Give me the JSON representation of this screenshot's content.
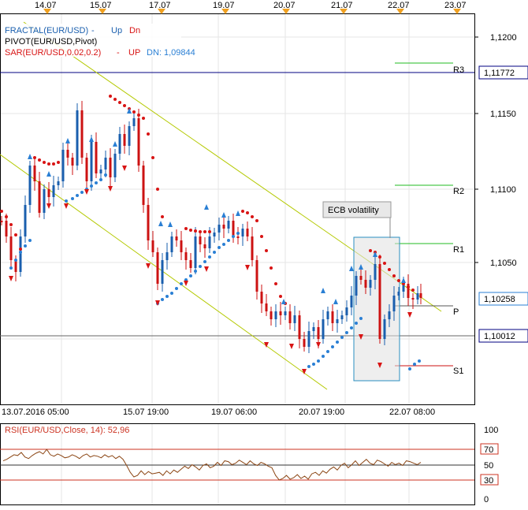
{
  "colors": {
    "frame": "#000000",
    "grid": "#e6e6e6",
    "up_candle": "#1a5fae",
    "down_candle": "#cc1212",
    "sar_up": "#2a7fd4",
    "sar_dn": "#d81414",
    "fractal_up": "#2a7fd4",
    "fractal_dn": "#d81414",
    "channel": "#b4c900",
    "pivot_green": "#22bb22",
    "pivot_s1": "#cc1111",
    "level_navy": "#000080",
    "rsi_line": "#8b4513",
    "rsi_levels": "#cc3322",
    "date_flag": "#f0a020",
    "highlight_box": "#2a8fc0"
  },
  "date_flags": [
    "14.07",
    "15.07",
    "17.07",
    "19.07",
    "20.07",
    "21.07",
    "22.07",
    "23.07"
  ],
  "legend": {
    "fractal": "FRACTAL(EUR/USD)",
    "fractal_up": "Up",
    "fractal_dn": "Dn",
    "fractal_sep": "-",
    "pivot": "PIVOT(EUR/USD,Pivot)",
    "sar": "SAR(EUR/USD,0.02,0.2)",
    "sar_sep": "-",
    "sar_up": "UP",
    "sar_dn": "DN: 1,09844"
  },
  "price_axis": {
    "ticks": [
      "1,1200",
      "1,1150",
      "1,1100",
      "1,1050"
    ],
    "highlight_1": "1,11772",
    "highlight_2": "1,10258",
    "highlight_3": "1,10012"
  },
  "pivot_labels": {
    "r3": "R3",
    "r2": "R2",
    "r1": "R1",
    "p": "P",
    "s1": "S1"
  },
  "annotation": "ECB volatility",
  "time_axis": [
    "13.07.2016 05:00",
    "15.07 19:00",
    "19.07 06:00",
    "20.07 19:00",
    "22.07 08:00"
  ],
  "rsi": {
    "title": "RSI(EUR/USD,Close, 14): 52,96",
    "ticks": [
      "100",
      "70",
      "50",
      "30",
      "0"
    ],
    "values": [
      55,
      57,
      60,
      63,
      62,
      66,
      60,
      58,
      62,
      65,
      67,
      64,
      70,
      63,
      61,
      64,
      62,
      59,
      60,
      63,
      61,
      58,
      62,
      64,
      60,
      62,
      61,
      59,
      63,
      60,
      62,
      58,
      61,
      57,
      49,
      40,
      34,
      36,
      42,
      37,
      41,
      38,
      39,
      40,
      36,
      42,
      38,
      43,
      40,
      44,
      48,
      45,
      50,
      47,
      43,
      49,
      51,
      46,
      48,
      53,
      49,
      55,
      54,
      50,
      52,
      56,
      53,
      50,
      55,
      51,
      49,
      53,
      51,
      48,
      46,
      36,
      30,
      32,
      36,
      31,
      33,
      37,
      32,
      35,
      31,
      38,
      40,
      36,
      42,
      39,
      44,
      47,
      43,
      49,
      52,
      46,
      50,
      55,
      49,
      53,
      57,
      52,
      50,
      56,
      54,
      51,
      48,
      53,
      50,
      52,
      49,
      55,
      54,
      52,
      50,
      52.96
    ]
  }
}
